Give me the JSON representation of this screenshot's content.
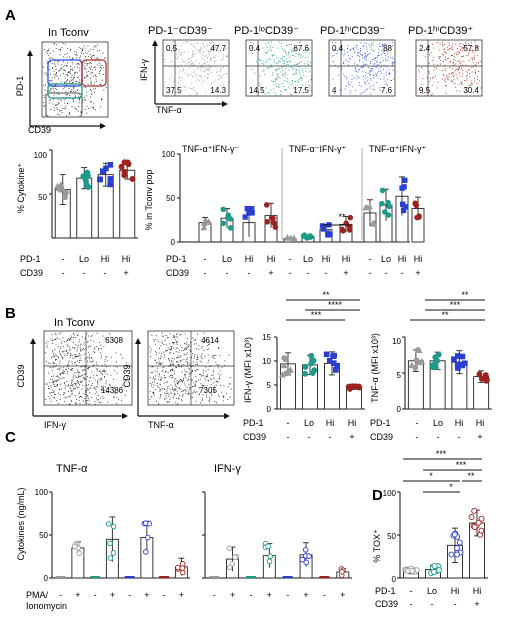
{
  "figure": {
    "panels": {
      "A": "A",
      "B": "B",
      "C": "C",
      "D": "D"
    },
    "A": {
      "gate_plot": {
        "title": "In Tconv",
        "ylabel": "PD-1",
        "xlabel": "CD39"
      },
      "quad_xlabel": "TNF-α",
      "quad_ylabel": "IFN-γ",
      "quad_plots": [
        {
          "title": "PD-1⁻CD39⁻",
          "q": [
            "0.5",
            "47.7",
            "37.5",
            "14.3"
          ],
          "color": "#9a9a9a"
        },
        {
          "title": "PD-1ˡᵒCD39⁻",
          "q": [
            "0.4",
            "67.6",
            "14.5",
            "17.5"
          ],
          "color": "#1d9a8a"
        },
        {
          "title": "PD-1ʰⁱCD39⁻",
          "q": [
            "0.4",
            "88",
            "4",
            "7.6"
          ],
          "color": "#2f4fe0"
        },
        {
          "title": "PD-1ʰⁱCD39⁺",
          "q": [
            "2.4",
            "57.8",
            "9.5",
            "30.4"
          ],
          "color": "#a8251f"
        }
      ],
      "pct_cytokine": {
        "ylabel": "% Cytokine⁺",
        "yticks": [
          "50",
          "100"
        ]
      },
      "tconv_pop": {
        "ylabel": "% in Tconv pop",
        "yticks": [
          "0",
          "50",
          "100"
        ],
        "groups": [
          "TNF-α⁺IFN-γ⁻",
          "TNF-α⁻IFN-γ⁺",
          "TNF-α⁺IFN-γ⁺"
        ],
        "sig": "**"
      }
    },
    "B": {
      "title": "In Tconv",
      "dot1": {
        "ylabel": "CD39",
        "xlabel": "IFN-γ",
        "q": [
          "6308",
          "14386"
        ]
      },
      "dot2": {
        "ylabel": "CD39",
        "xlabel": "TNF-α",
        "q": [
          "4614",
          "7305"
        ]
      },
      "ifng_mfi": {
        "ylabel": "IFN-γ (MFI x10³)",
        "yticks": [
          "0",
          "5",
          "10",
          "15"
        ],
        "sig": [
          "**",
          "****",
          "***"
        ]
      },
      "tnfa_mfi": {
        "ylabel": "TNF-α (MFI x10³)",
        "yticks": [
          "0",
          "5",
          "10"
        ],
        "sig": [
          "**",
          "***",
          "**"
        ]
      }
    },
    "C": {
      "ylabel": "Cytokines (ng/mL)",
      "yticks": [
        "0",
        "50",
        "100"
      ],
      "tnfa_title": "TNF-α",
      "ifng_title": "IFN-γ",
      "treat_label": "PMA/\nIonomycin",
      "treat_row": [
        "-",
        "+",
        "-",
        "+",
        "-",
        "+",
        "-",
        "+"
      ]
    },
    "D": {
      "ylabel": "% TOX⁺",
      "yticks": [
        "0",
        "50",
        "100"
      ],
      "sig": [
        "***",
        "***",
        "*",
        "**",
        "*"
      ]
    },
    "row_labels": {
      "pd1": "PD-1",
      "cd39": "CD39"
    },
    "pd1_row": [
      "-",
      "Lo",
      "Hi",
      "Hi"
    ],
    "cd39_row": [
      "-",
      "-",
      "-",
      "+"
    ]
  },
  "chart_data": [
    {
      "type": "bar",
      "panel": "A",
      "title": "",
      "ylabel": "% Cytokine⁺",
      "ylim": [
        0,
        100
      ],
      "categories": [
        "PD-1- CD39-",
        "PD-1lo CD39-",
        "PD-1hi CD39-",
        "PD-1hi CD39+"
      ],
      "values": [
        55,
        68,
        72,
        77
      ],
      "errors": [
        17,
        12,
        13,
        10
      ]
    },
    {
      "type": "bar",
      "panel": "A",
      "ylabel": "% in Tconv pop",
      "ylim": [
        0,
        100
      ],
      "categories": [
        "PD-1- CD39-",
        "PD-1lo CD39-",
        "PD-1hi CD39-",
        "PD-1hi CD39+"
      ],
      "series": [
        {
          "name": "TNF-α⁺IFN-γ⁻",
          "values": [
            22,
            27,
            22,
            30
          ],
          "errors": [
            6,
            11,
            16,
            14
          ]
        },
        {
          "name": "TNF-α⁻IFN-γ⁺",
          "values": [
            4,
            6,
            14,
            20
          ],
          "errors": [
            1,
            2,
            6,
            9
          ]
        },
        {
          "name": "TNF-α⁺IFN-γ⁺",
          "values": [
            33,
            42,
            52,
            38
          ],
          "errors": [
            15,
            18,
            22,
            13
          ]
        }
      ]
    },
    {
      "type": "bar",
      "panel": "B",
      "ylabel": "IFN-γ (MFI x10³)",
      "ylim": [
        0,
        15
      ],
      "categories": [
        "PD-1- CD39-",
        "PD-1lo CD39-",
        "PD-1hi CD39-",
        "PD-1hi CD39+"
      ],
      "values": [
        9.4,
        9.2,
        9.5,
        4.6
      ],
      "errors": [
        2.3,
        2.0,
        2.4,
        0.5
      ]
    },
    {
      "type": "bar",
      "panel": "B",
      "ylabel": "TNF-α (MFI x10³)",
      "ylim": [
        0,
        10
      ],
      "categories": [
        "PD-1- CD39-",
        "PD-1lo CD39-",
        "PD-1hi CD39-",
        "PD-1hi CD39+"
      ],
      "values": [
        6.7,
        6.7,
        6.5,
        4.5
      ],
      "errors": [
        1.5,
        1.2,
        1.6,
        0.8
      ]
    },
    {
      "type": "bar",
      "panel": "C",
      "title": "TNF-α",
      "ylabel": "Cytokines (ng/mL)",
      "ylim": [
        0,
        100
      ],
      "categories": [
        "PD-1- CD39-",
        "PD-1lo CD39-",
        "PD-1hi CD39-",
        "PD-1hi CD39+"
      ],
      "series": [
        {
          "name": "-",
          "values": [
            0,
            0,
            0,
            0
          ]
        },
        {
          "name": "+",
          "values": [
            35,
            45,
            47,
            13
          ],
          "errors": [
            7,
            26,
            19,
            10
          ]
        }
      ]
    },
    {
      "type": "bar",
      "panel": "C",
      "title": "IFN-γ",
      "ylabel": "Cytokines (ng/mL)",
      "ylim": [
        0,
        100
      ],
      "categories": [
        "PD-1- CD39-",
        "PD-1lo CD39-",
        "PD-1hi CD39-",
        "PD-1hi CD39+"
      ],
      "series": [
        {
          "name": "-",
          "values": [
            0,
            0,
            0,
            0
          ]
        },
        {
          "name": "+",
          "values": [
            22,
            26,
            27,
            7
          ],
          "errors": [
            14,
            14,
            14,
            4
          ]
        }
      ]
    },
    {
      "type": "bar",
      "panel": "D",
      "ylabel": "% TOX⁺",
      "ylim": [
        0,
        100
      ],
      "categories": [
        "PD-1- CD39-",
        "PD-1lo CD39-",
        "PD-1hi CD39-",
        "PD-1hi CD39+"
      ],
      "values": [
        8,
        10,
        38,
        64
      ],
      "errors": [
        3,
        5,
        20,
        15
      ]
    }
  ],
  "colors": {
    "grey": "#9a9a9a",
    "teal": "#1d9a8a",
    "blue": "#2a3fd0",
    "red": "#9c231f"
  }
}
